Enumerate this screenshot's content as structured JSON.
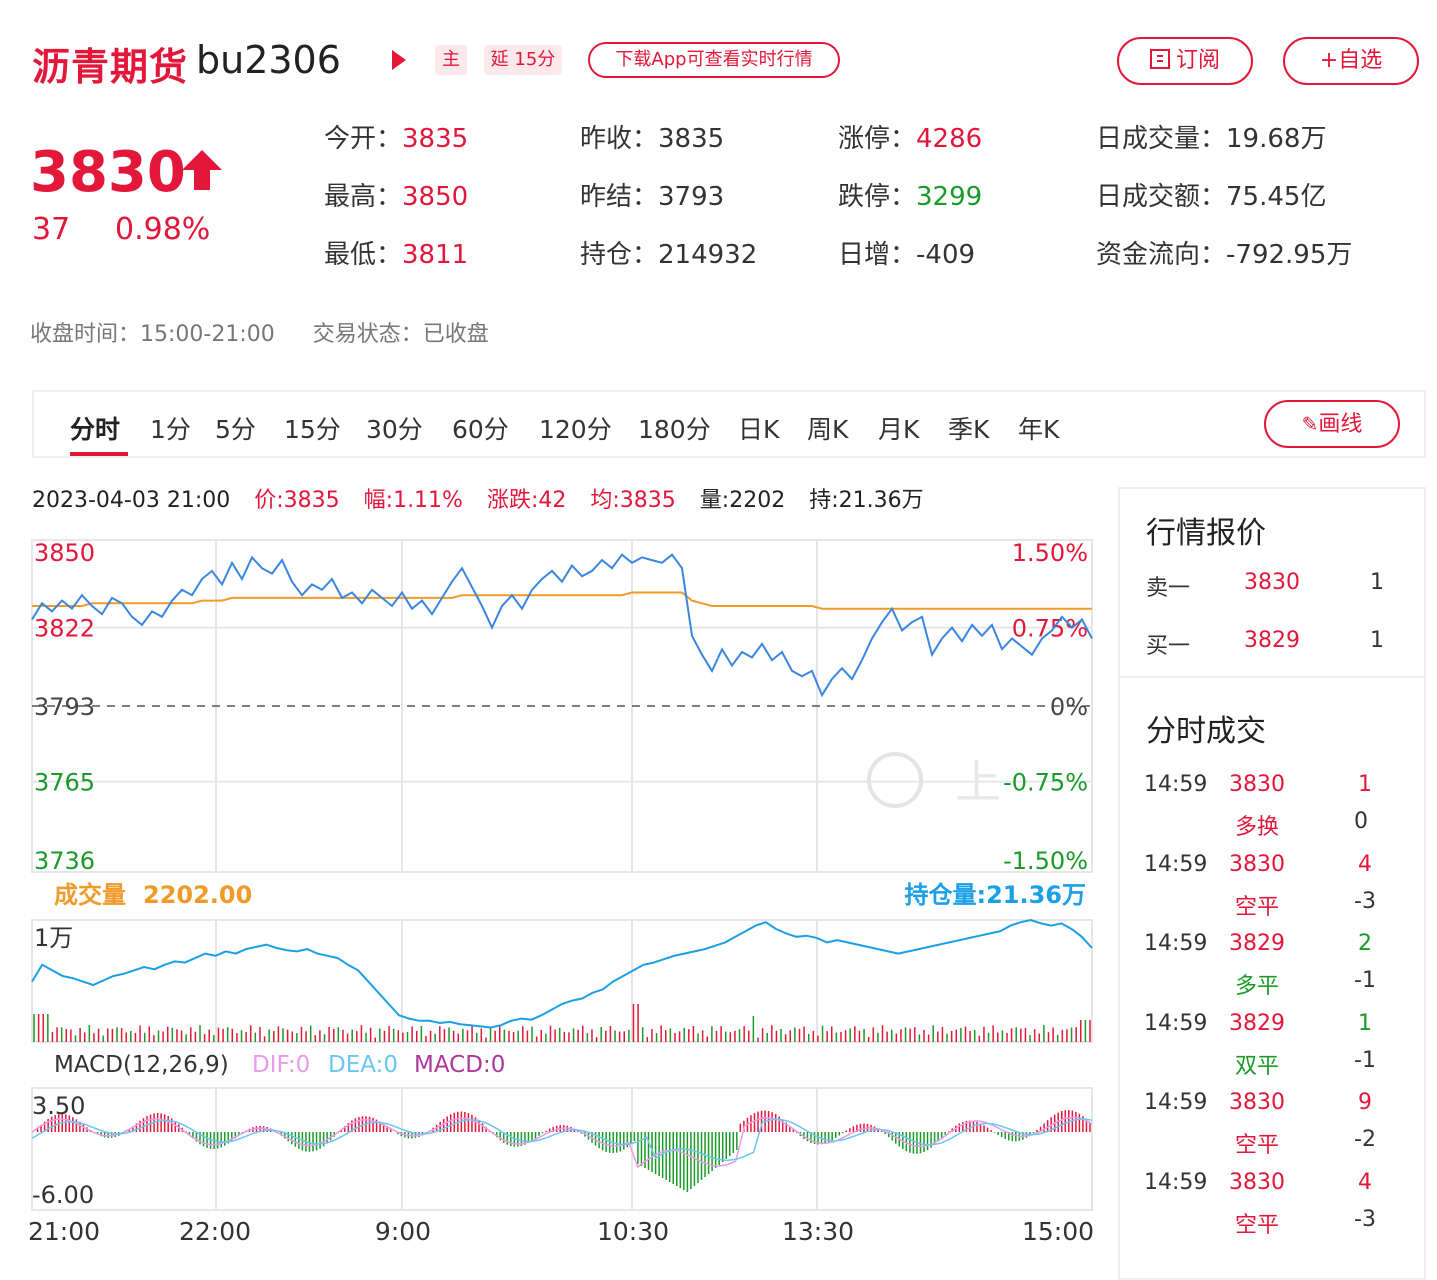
{
  "header": {
    "title": "沥青期货",
    "code": "bu2306",
    "tag_main": "主",
    "tag_delay": "延 15分",
    "app_pill": "下载App可查看实时行情",
    "subscribe": "订阅",
    "watch": "+自选"
  },
  "quote": {
    "price": "3830",
    "change": "37",
    "change_pct": "0.98%"
  },
  "stats": [
    {
      "label": "今开：",
      "value": "3835",
      "color": "red"
    },
    {
      "label": "昨收：",
      "value": "3835",
      "color": "plain"
    },
    {
      "label": "涨停：",
      "value": "4286",
      "color": "red"
    },
    {
      "label": "日成交量：",
      "value": "19.68万",
      "color": "plain"
    },
    {
      "label": "最高：",
      "value": "3850",
      "color": "red"
    },
    {
      "label": "昨结：",
      "value": "3793",
      "color": "plain"
    },
    {
      "label": "跌停：",
      "value": "3299",
      "color": "green"
    },
    {
      "label": "日成交额：",
      "value": "75.45亿",
      "color": "plain"
    },
    {
      "label": "最低：",
      "value": "3811",
      "color": "red"
    },
    {
      "label": "持仓：",
      "value": "214932",
      "color": "plain"
    },
    {
      "label": "日增：",
      "value": "-409",
      "color": "plain"
    },
    {
      "label": "资金流向：",
      "value": "-792.95万",
      "color": "plain"
    }
  ],
  "meta": {
    "close_time": "收盘时间：15:00-21:00",
    "trade_state": "交易状态：已收盘"
  },
  "tabs": [
    "分时",
    "1分",
    "5分",
    "15分",
    "30分",
    "60分",
    "120分",
    "180分",
    "日K",
    "周K",
    "月K",
    "季K",
    "年K"
  ],
  "draw_button": "画线",
  "info_line": {
    "datetime": "2023-04-03 21:00",
    "price": "价:3835",
    "amp": "幅:1.11%",
    "chg": "涨跌:42",
    "avg": "均:3835",
    "vol": "量:2202",
    "hold": "持:21.36万"
  },
  "chart_data": [
    {
      "type": "line",
      "name": "price-chart",
      "x_ticks": [
        "21:00",
        "22:00",
        "9:00",
        "10:30",
        "13:30",
        "15:00"
      ],
      "y_ticks_left": [
        "3850",
        "3822",
        "3793",
        "3765",
        "3736"
      ],
      "y_ticks_right": [
        "1.50%",
        "0.75%",
        "0%",
        "-0.75%",
        "-1.50%"
      ],
      "ylim": [
        3736,
        3850
      ],
      "reference": 3793,
      "watermark": "上",
      "series": [],
      "price": [
        3825,
        3831,
        3828,
        3832,
        3829,
        3834,
        3830,
        3827,
        3833,
        3831,
        3826,
        3823,
        3828,
        3826,
        3832,
        3836,
        3834,
        3840,
        3843,
        3838,
        3846,
        3840,
        3848,
        3844,
        3842,
        3847,
        3839,
        3834,
        3838,
        3836,
        3840,
        3833,
        3835,
        3831,
        3836,
        3833,
        3830,
        3835,
        3829,
        3832,
        3827,
        3833,
        3839,
        3844,
        3837,
        3830,
        3822,
        3830,
        3834,
        3829,
        3836,
        3840,
        3843,
        3839,
        3845,
        3841,
        3843,
        3847,
        3844,
        3849,
        3846,
        3848,
        3847,
        3846,
        3849,
        3844,
        3819,
        3812,
        3806,
        3814,
        3808,
        3813,
        3811,
        3816,
        3810,
        3813,
        3806,
        3804,
        3806,
        3797,
        3803,
        3807,
        3803,
        3810,
        3818,
        3824,
        3829,
        3821,
        3824,
        3826,
        3812,
        3818,
        3822,
        3817,
        3823,
        3819,
        3823,
        3814,
        3818,
        3815,
        3812,
        3818,
        3821,
        3826,
        3822,
        3825,
        3818
      ],
      "avg": [
        3830,
        3830,
        3830,
        3830,
        3830,
        3830,
        3831,
        3831,
        3831,
        3831,
        3831,
        3831,
        3831,
        3831,
        3831,
        3831,
        3831,
        3832,
        3832,
        3832,
        3833,
        3833,
        3833,
        3833,
        3833,
        3833,
        3833,
        3833,
        3833,
        3833,
        3833,
        3833,
        3833,
        3833,
        3833,
        3833,
        3833,
        3833,
        3833,
        3833,
        3833,
        3833,
        3833,
        3834,
        3834,
        3834,
        3834,
        3834,
        3834,
        3834,
        3834,
        3834,
        3834,
        3834,
        3834,
        3834,
        3834,
        3834,
        3834,
        3834,
        3835,
        3835,
        3835,
        3835,
        3835,
        3835,
        3832,
        3831,
        3830,
        3830,
        3830,
        3830,
        3830,
        3830,
        3830,
        3830,
        3830,
        3830,
        3830,
        3829,
        3829,
        3829,
        3829,
        3829,
        3829,
        3829,
        3829,
        3829,
        3829,
        3829,
        3829,
        3829,
        3829,
        3829,
        3829,
        3829,
        3829,
        3829,
        3829,
        3829,
        3829,
        3829,
        3829,
        3829,
        3829,
        3829,
        3829
      ]
    },
    {
      "type": "bar",
      "name": "volume-chart",
      "label_vol": "成交量",
      "vol_value": "2202.00",
      "label_hold": "持仓量:21.36万",
      "y_tick": "1万",
      "hold": [
        0.45,
        0.6,
        0.55,
        0.5,
        0.48,
        0.45,
        0.42,
        0.46,
        0.5,
        0.52,
        0.55,
        0.58,
        0.56,
        0.6,
        0.63,
        0.62,
        0.66,
        0.7,
        0.68,
        0.72,
        0.7,
        0.74,
        0.76,
        0.78,
        0.75,
        0.73,
        0.72,
        0.74,
        0.7,
        0.68,
        0.66,
        0.6,
        0.55,
        0.45,
        0.35,
        0.25,
        0.15,
        0.12,
        0.1,
        0.1,
        0.08,
        0.09,
        0.07,
        0.06,
        0.05,
        0.04,
        0.06,
        0.1,
        0.12,
        0.11,
        0.15,
        0.2,
        0.25,
        0.28,
        0.3,
        0.35,
        0.38,
        0.45,
        0.5,
        0.55,
        0.6,
        0.62,
        0.65,
        0.68,
        0.7,
        0.72,
        0.74,
        0.77,
        0.8,
        0.85,
        0.9,
        0.95,
        0.98,
        0.92,
        0.88,
        0.85,
        0.86,
        0.84,
        0.8,
        0.82,
        0.8,
        0.78,
        0.76,
        0.74,
        0.72,
        0.7,
        0.72,
        0.74,
        0.76,
        0.78,
        0.8,
        0.82,
        0.84,
        0.86,
        0.88,
        0.9,
        0.95,
        0.98,
        1.0,
        0.97,
        0.95,
        0.97,
        0.92,
        0.85,
        0.75
      ]
    },
    {
      "type": "line",
      "name": "macd-chart",
      "title": "MACD(12,26,9)",
      "dif_label": "DIF:0",
      "dea_label": "DEA:0",
      "macd_label": "MACD:0",
      "y_ticks": [
        "3.50",
        "-6.00"
      ],
      "ylim": [
        -6,
        3.5
      ]
    }
  ],
  "trade_panel": {
    "quote_title": "行情报价",
    "sell1_label": "卖一",
    "sell1_price": "3830",
    "sell1_vol": "1",
    "buy1_label": "买一",
    "buy1_price": "3829",
    "buy1_vol": "1",
    "ticks_title": "分时成交",
    "ticks": [
      {
        "time": "14:59",
        "price": "3830",
        "price_color": "red",
        "vol": "1",
        "vol_color": "red",
        "type": "多换",
        "type_color": "red",
        "delta": "0"
      },
      {
        "time": "14:59",
        "price": "3830",
        "price_color": "red",
        "vol": "4",
        "vol_color": "red",
        "type": "空平",
        "type_color": "red",
        "delta": "-3"
      },
      {
        "time": "14:59",
        "price": "3829",
        "price_color": "red",
        "vol": "2",
        "vol_color": "green",
        "type": "多平",
        "type_color": "green",
        "delta": "-1"
      },
      {
        "time": "14:59",
        "price": "3829",
        "price_color": "red",
        "vol": "1",
        "vol_color": "green",
        "type": "双平",
        "type_color": "green",
        "delta": "-1"
      },
      {
        "time": "14:59",
        "price": "3830",
        "price_color": "red",
        "vol": "9",
        "vol_color": "red",
        "type": "空平",
        "type_color": "red",
        "delta": "-2"
      },
      {
        "time": "14:59",
        "price": "3830",
        "price_color": "red",
        "vol": "4",
        "vol_color": "red",
        "type": "空平",
        "type_color": "red",
        "delta": "-3"
      }
    ]
  },
  "colors": {
    "red": "#e3173a",
    "green": "#1a9a28",
    "blue": "#1aa0e6",
    "orange": "#f09a2a",
    "dif": "#e89be8",
    "dea": "#6cc7f0",
    "macd": "#b0379a"
  }
}
